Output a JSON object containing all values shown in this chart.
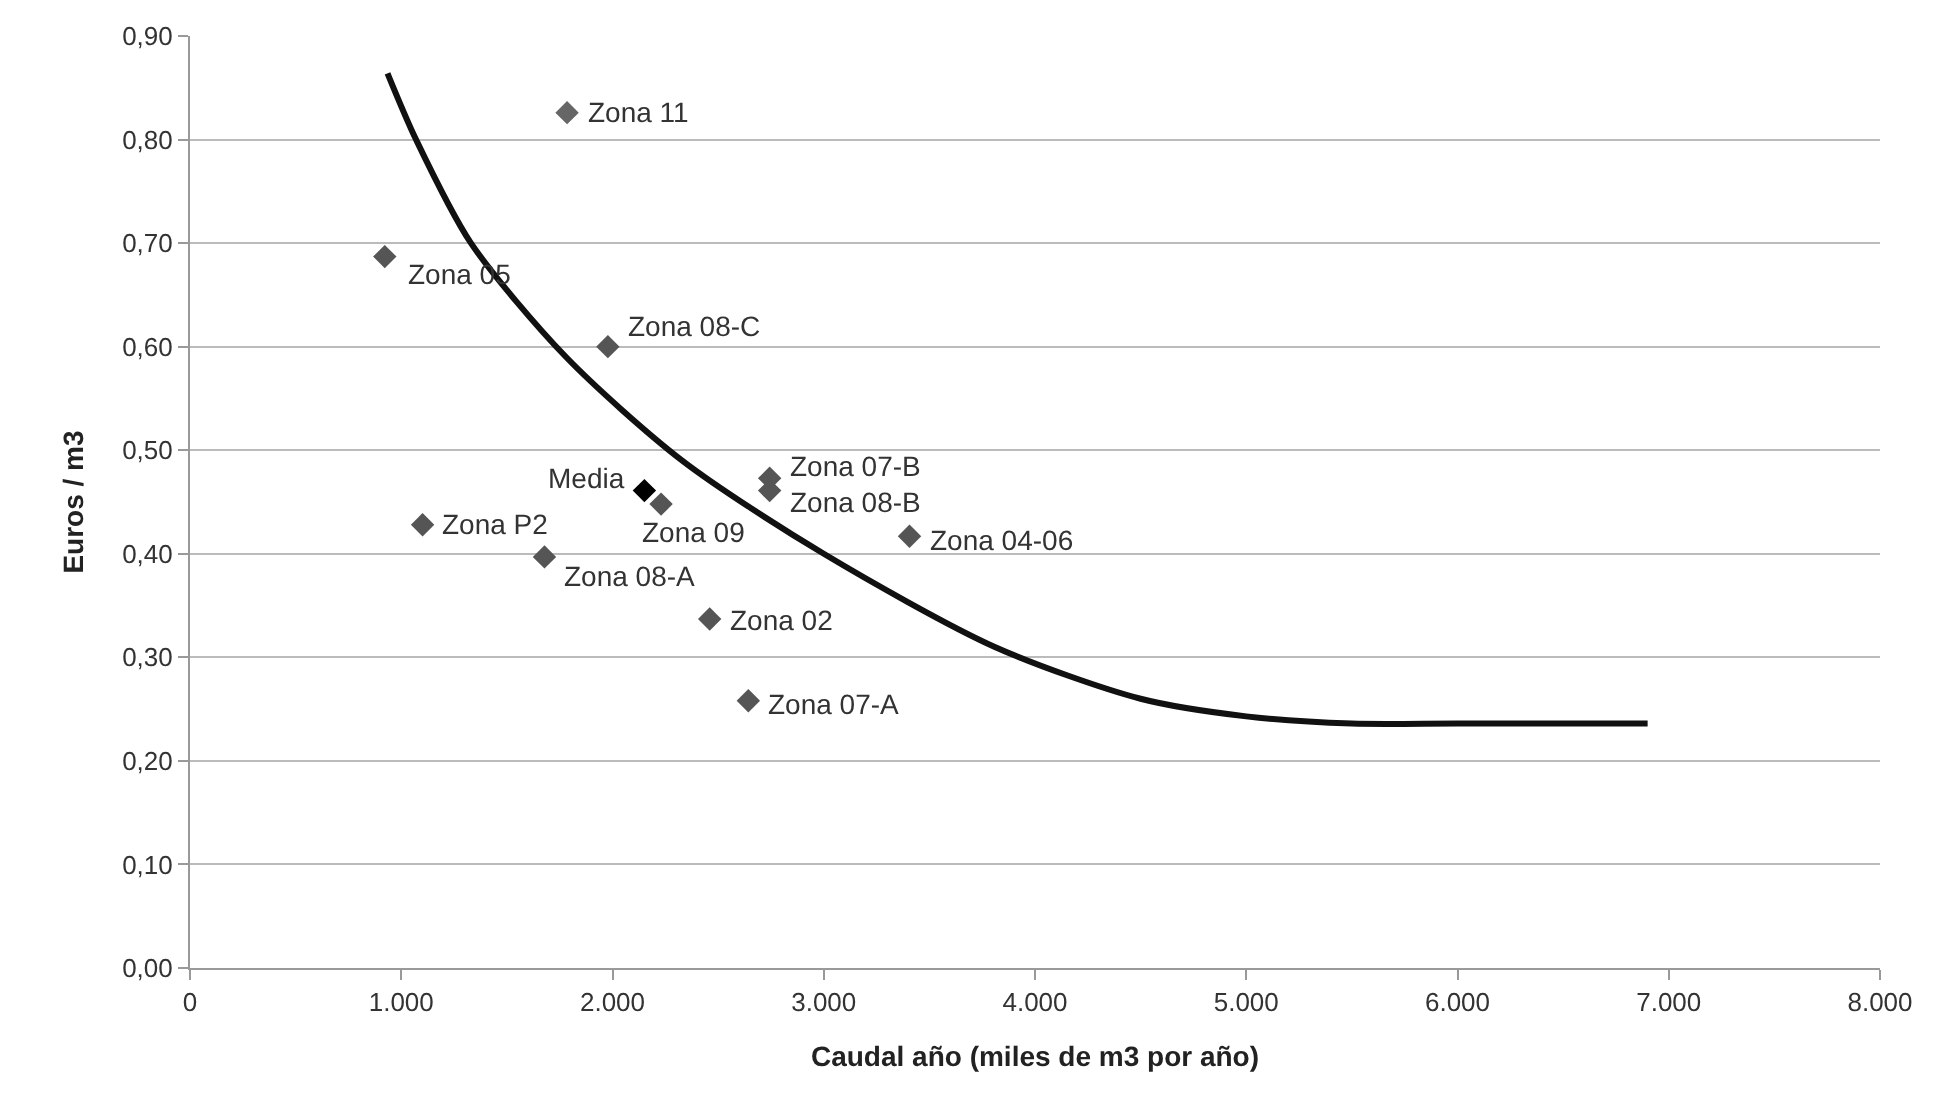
{
  "chart_data": {
    "type": "scatter",
    "xlabel": "Caudal año (miles de m3 por año)",
    "ylabel": "Euros / m3",
    "xlim": [
      0,
      8000
    ],
    "ylim": [
      0,
      0.9
    ],
    "xticks": [
      {
        "value": 0,
        "label": "0"
      },
      {
        "value": 1000,
        "label": "1.000"
      },
      {
        "value": 2000,
        "label": "2.000"
      },
      {
        "value": 3000,
        "label": "3.000"
      },
      {
        "value": 4000,
        "label": "4.000"
      },
      {
        "value": 5000,
        "label": "5.000"
      },
      {
        "value": 6000,
        "label": "6.000"
      },
      {
        "value": 7000,
        "label": "7.000"
      },
      {
        "value": 8000,
        "label": "8.000"
      }
    ],
    "yticks": [
      {
        "value": 0,
        "label": "0,00"
      },
      {
        "value": 0.1,
        "label": "0,10"
      },
      {
        "value": 0.2,
        "label": "0,20"
      },
      {
        "value": 0.3,
        "label": "0,30"
      },
      {
        "value": 0.4,
        "label": "0,40"
      },
      {
        "value": 0.5,
        "label": "0,50"
      },
      {
        "value": 0.6,
        "label": "0,60"
      },
      {
        "value": 0.7,
        "label": "0,70"
      },
      {
        "value": 0.8,
        "label": "0,80"
      },
      {
        "value": 0.9,
        "label": "0,90"
      }
    ],
    "grid": "y",
    "marker": "diamond",
    "series": [
      {
        "x": [
          1785,
          922,
          1978,
          2151,
          2230,
          2744,
          2744,
          1101,
          3406,
          1678,
          2460,
          2643
        ],
        "values": [
          0.826,
          0.687,
          0.6,
          0.461,
          0.448,
          0.473,
          0.461,
          0.428,
          0.417,
          0.397,
          0.337,
          0.258
        ],
        "colors": [
          "#666666",
          "#555555",
          "#555555",
          "#000000",
          "#555555",
          "#555555",
          "#555555",
          "#555555",
          "#555555",
          "#555555",
          "#555555",
          "#555555"
        ]
      },
      {
        "type": "line",
        "color": "#111111",
        "marker": "none",
        "x": [
          935,
          1070,
          1330,
          1780,
          2330,
          3000,
          3810,
          4500,
          5000,
          5500,
          6000,
          6900
        ],
        "values": [
          0.864,
          0.8,
          0.7,
          0.59,
          0.49,
          0.4,
          0.31,
          0.26,
          0.243,
          0.236,
          0.236,
          0.236
        ]
      }
    ],
    "annotations": [
      {
        "text": "Zona 11",
        "x": 1785,
        "y": 0.826
      },
      {
        "text": "Zona 05",
        "x": 922,
        "y": 0.687
      },
      {
        "text": "Zona 08-C",
        "x": 1978,
        "y": 0.6
      },
      {
        "text": "Media",
        "x": 2151,
        "y": 0.461
      },
      {
        "text": "Zona 09",
        "x": 2230,
        "y": 0.448
      },
      {
        "text": "Zona 07-B",
        "x": 2744,
        "y": 0.473
      },
      {
        "text": "Zona 08-B",
        "x": 2744,
        "y": 0.461
      },
      {
        "text": "Zona P2",
        "x": 1101,
        "y": 0.428
      },
      {
        "text": "Zona 04-06",
        "x": 3406,
        "y": 0.417
      },
      {
        "text": "Zona 08-A",
        "x": 1678,
        "y": 0.397
      },
      {
        "text": "Zona 02",
        "x": 2460,
        "y": 0.337
      },
      {
        "text": "Zona 07-A",
        "x": 2643,
        "y": 0.258
      }
    ]
  }
}
